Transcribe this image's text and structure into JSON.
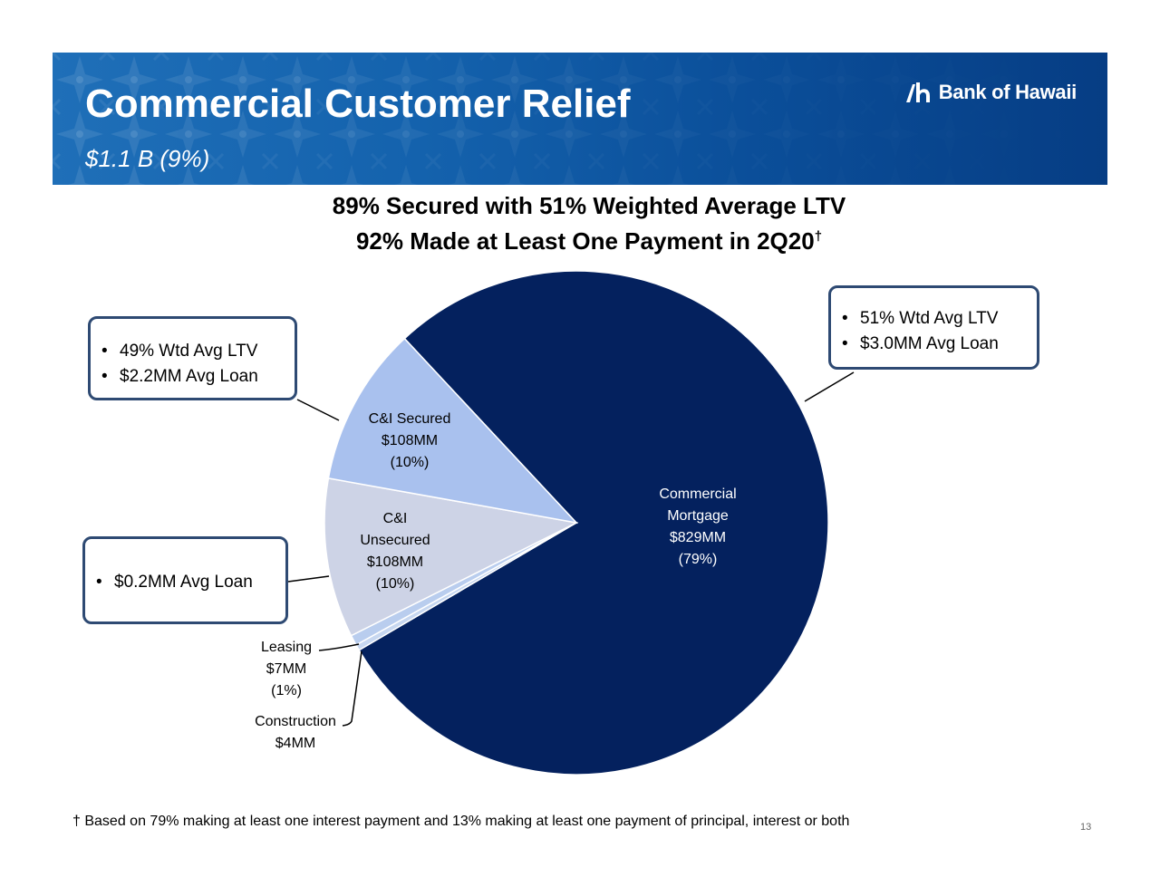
{
  "header": {
    "title": "Commercial Customer Relief",
    "subtitle": "$1.1 B (9%)",
    "logo_text": "Bank of Hawaii"
  },
  "headlines": {
    "line1": "89% Secured with 51% Weighted Average LTV",
    "line2": "92% Made at Least One Payment in 2Q20",
    "line2_mark": "†"
  },
  "callouts": {
    "ci_secured": [
      "49% Wtd Avg LTV",
      "$2.2MM Avg Loan"
    ],
    "commercial_mortgage": [
      "51% Wtd Avg LTV",
      "$3.0MM Avg Loan"
    ],
    "ci_unsecured": [
      "$0.2MM Avg Loan"
    ]
  },
  "chart_data": {
    "type": "pie",
    "unit": "$MM",
    "slices": [
      {
        "key": "commercial-mortgage",
        "label_lines": [
          "Commercial",
          "Mortgage",
          "$829MM",
          "(79%)"
        ],
        "value": 829,
        "percent": 79,
        "color": "#04215e"
      },
      {
        "key": "construction",
        "label_lines": [
          "Construction",
          "$4MM"
        ],
        "value": 4,
        "percent": null,
        "color": "#c7d7f0"
      },
      {
        "key": "leasing",
        "label_lines": [
          "Leasing",
          "$7MM",
          "(1%)"
        ],
        "value": 7,
        "percent": 1,
        "color": "#b9cdee"
      },
      {
        "key": "ci-unsecured",
        "label_lines": [
          "C&I",
          "Unsecured",
          "$108MM",
          "(10%)"
        ],
        "value": 108,
        "percent": 10,
        "color": "#cdd3e6"
      },
      {
        "key": "ci-secured",
        "label_lines": [
          "C&I Secured",
          "$108MM",
          "(10%)"
        ],
        "value": 108,
        "percent": 10,
        "color": "#a9c1ee"
      }
    ]
  },
  "colors": {
    "banner": "#0b4f9a",
    "callout_border": "#2e4a73",
    "mortgage": "#04215e"
  },
  "footnote": {
    "mark": "†",
    "text": "Based on 79% making at least one interest payment and 13% making at least one payment of principal, interest or both"
  },
  "page_number": "13"
}
